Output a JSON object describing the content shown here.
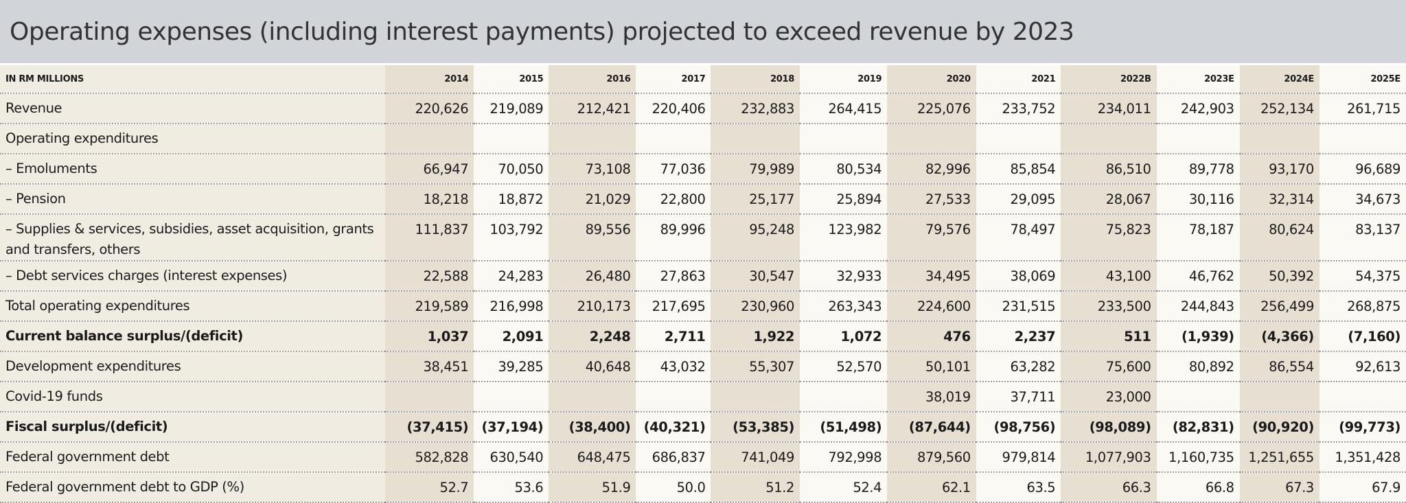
{
  "title": "Operating expenses (including interest payments) projected to exceed revenue by 2023",
  "table": {
    "unit_label": "IN RM MILLIONS",
    "years": [
      "2014",
      "2015",
      "2016",
      "2017",
      "2018",
      "2019",
      "2020",
      "2021",
      "2022B",
      "2023E",
      "2024E",
      "2025E"
    ],
    "rows": [
      {
        "label": "Revenue",
        "bold": false,
        "values": [
          "220,626",
          "219,089",
          "212,421",
          "220,406",
          "232,883",
          "264,415",
          "225,076",
          "233,752",
          "234,011",
          "242,903",
          "252,134",
          "261,715"
        ]
      },
      {
        "label": "Operating expenditures",
        "bold": false,
        "values": [
          "",
          "",
          "",
          "",
          "",
          "",
          "",
          "",
          "",
          "",
          "",
          ""
        ]
      },
      {
        "label": "– Emoluments",
        "bold": false,
        "values": [
          "66,947",
          "70,050",
          "73,108",
          "77,036",
          "79,989",
          "80,534",
          "82,996",
          "85,854",
          "86,510",
          "89,778",
          "93,170",
          "96,689"
        ]
      },
      {
        "label": "– Pension",
        "bold": false,
        "values": [
          "18,218",
          "18,872",
          "21,029",
          "22,800",
          "25,177",
          "25,894",
          "27,533",
          "29,095",
          "28,067",
          "30,116",
          "32,314",
          "34,673"
        ]
      },
      {
        "label": "– Supplies & services, subsidies, asset acquisition, grants and transfers, others",
        "bold": false,
        "tall": true,
        "values": [
          "111,837",
          "103,792",
          "89,556",
          "89,996",
          "95,248",
          "123,982",
          "79,576",
          "78,497",
          "75,823",
          "78,187",
          "80,624",
          "83,137"
        ]
      },
      {
        "label": "– Debt services charges (interest expenses)",
        "bold": false,
        "values": [
          "22,588",
          "24,283",
          "26,480",
          "27,863",
          "30,547",
          "32,933",
          "34,495",
          "38,069",
          "43,100",
          "46,762",
          "50,392",
          "54,375"
        ]
      },
      {
        "label": "Total operating expenditures",
        "bold": false,
        "values": [
          "219,589",
          "216,998",
          "210,173",
          "217,695",
          "230,960",
          "263,343",
          "224,600",
          "231,515",
          "233,500",
          "244,843",
          "256,499",
          "268,875"
        ]
      },
      {
        "label": "Current balance surplus/(deficit)",
        "bold": true,
        "values": [
          "1,037",
          "2,091",
          "2,248",
          "2,711",
          "1,922",
          "1,072",
          "476",
          "2,237",
          "511",
          "(1,939)",
          "(4,366)",
          "(7,160)"
        ]
      },
      {
        "label": "Development expenditures",
        "bold": false,
        "values": [
          "38,451",
          "39,285",
          "40,648",
          "43,032",
          "55,307",
          "52,570",
          "50,101",
          "63,282",
          "75,600",
          "80,892",
          "86,554",
          "92,613"
        ]
      },
      {
        "label": "Covid-19 funds",
        "bold": false,
        "values": [
          "",
          "",
          "",
          "",
          "",
          "",
          "38,019",
          "37,711",
          "23,000",
          "",
          "",
          ""
        ]
      },
      {
        "label": "Fiscal surplus/(deficit)",
        "bold": true,
        "values": [
          "(37,415)",
          "(37,194)",
          "(38,400)",
          "(40,321)",
          "(53,385)",
          "(51,498)",
          "(87,644)",
          "(98,756)",
          "(98,089)",
          "(82,831)",
          "(90,920)",
          "(99,773)"
        ]
      },
      {
        "label": "Federal government debt",
        "bold": false,
        "values": [
          "582,828",
          "630,540",
          "648,475",
          "686,837",
          "741,049",
          "792,998",
          "879,560",
          "979,814",
          "1,077,903",
          "1,160,735",
          "1,251,655",
          "1,351,428"
        ]
      },
      {
        "label": "Federal government debt to GDP (%)",
        "bold": false,
        "values": [
          "52.7",
          "53.6",
          "51.9",
          "50.0",
          "51.2",
          "52.4",
          "62.1",
          "63.5",
          "66.3",
          "66.8",
          "67.3",
          "67.9"
        ]
      }
    ]
  }
}
